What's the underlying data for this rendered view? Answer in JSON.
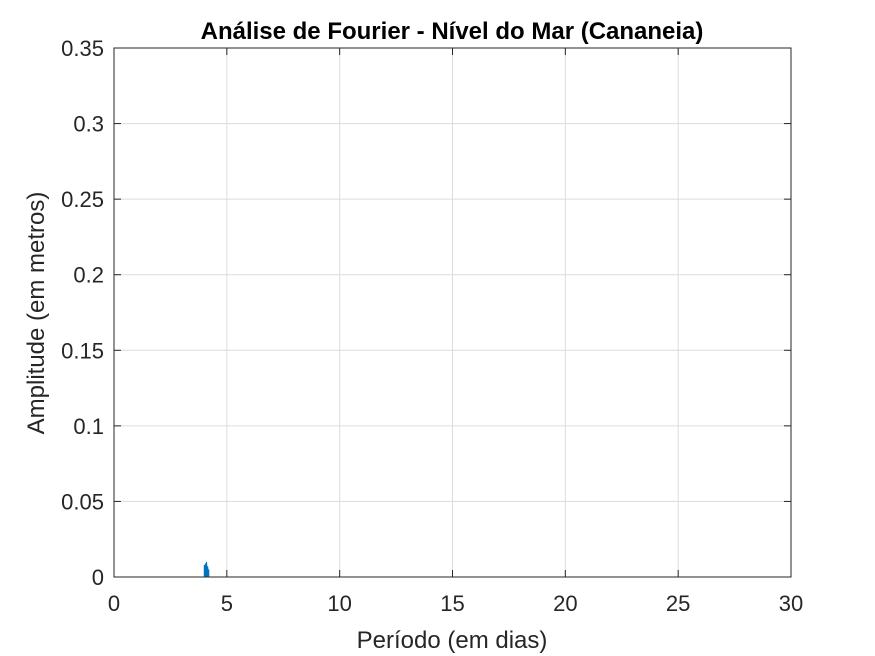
{
  "chart_data": {
    "type": "line",
    "title": "Análise de Fourier - Nível do Mar (Cananeia)",
    "xlabel": "Período (em dias)",
    "ylabel": "Amplitude (em metros)",
    "xlim": [
      0,
      30
    ],
    "ylim": [
      0,
      0.35
    ],
    "xticks": [
      0,
      5,
      10,
      15,
      20,
      25,
      30
    ],
    "xtick_labels": [
      "0",
      "5",
      "10",
      "15",
      "20",
      "25",
      "30"
    ],
    "yticks": [
      0,
      0.05,
      0.1,
      0.15,
      0.2,
      0.25,
      0.3,
      0.35
    ],
    "ytick_labels": [
      "0",
      "0.05",
      "0.1",
      "0.15",
      "0.2",
      "0.25",
      "0.3",
      "0.35"
    ],
    "grid": true,
    "series": [
      {
        "color": "#0072BD",
        "x": [
          4.0,
          4.0,
          4.05,
          4.05,
          4.1,
          4.1,
          4.15,
          4.15,
          4.2,
          4.2
        ],
        "y": [
          0.0,
          0.008,
          0.0,
          0.009,
          0.0,
          0.01,
          0.0,
          0.007,
          0.0,
          0.005
        ]
      }
    ]
  }
}
